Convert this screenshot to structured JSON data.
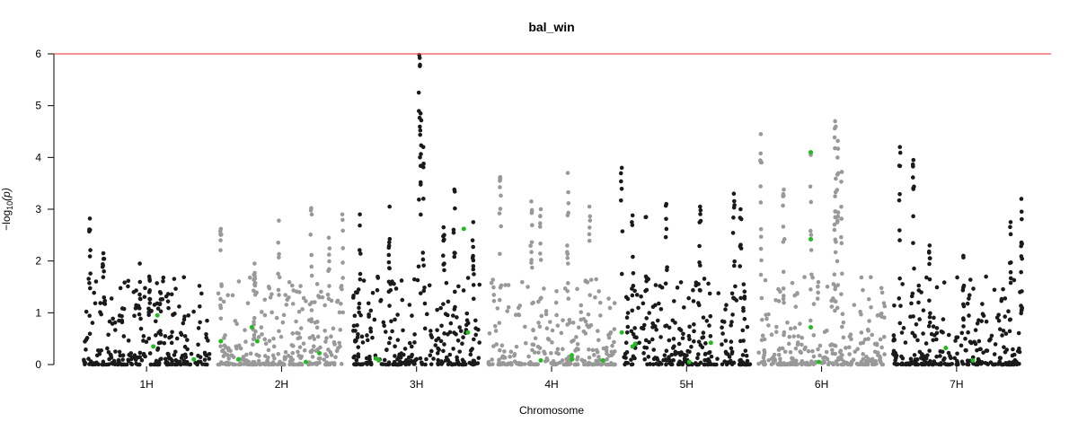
{
  "chart_data": {
    "type": "scatter",
    "title": "bal_win",
    "xlabel": "Chromosome",
    "ylabel_text": "−log",
    "ylabel_sub": "10",
    "ylabel_tail": "(p)",
    "ylim": [
      0,
      6
    ],
    "yticks": [
      0,
      1,
      2,
      3,
      4,
      5,
      6
    ],
    "threshold": 6,
    "colors": {
      "odd": "#1a1a1a",
      "even": "#999999",
      "highlight": "#22bb22",
      "threshold": "#ee5555",
      "axis": "#000000"
    },
    "chromosomes": [
      {
        "name": "1H",
        "range": [
          0,
          1.0
        ],
        "peaks": [
          {
            "x": 0.08,
            "y": 2.82
          },
          {
            "x": 0.18,
            "y": 2.15
          },
          {
            "x": 0.45,
            "y": 1.95
          },
          {
            "x": 0.52,
            "y": 1.7
          },
          {
            "x": 0.6,
            "y": 1.4
          }
        ]
      },
      {
        "name": "2H",
        "range": [
          1.0,
          2.0
        ],
        "peaks": [
          {
            "x": 1.05,
            "y": 2.62
          },
          {
            "x": 1.3,
            "y": 1.95
          },
          {
            "x": 1.48,
            "y": 2.78
          },
          {
            "x": 1.72,
            "y": 3.02
          },
          {
            "x": 1.85,
            "y": 2.45
          },
          {
            "x": 1.95,
            "y": 2.9
          }
        ]
      },
      {
        "name": "3H",
        "range": [
          2.0,
          3.0
        ],
        "peaks": [
          {
            "x": 2.08,
            "y": 2.9
          },
          {
            "x": 2.3,
            "y": 3.05
          },
          {
            "x": 2.52,
            "y": 5.98
          },
          {
            "x": 2.53,
            "y": 4.85
          },
          {
            "x": 2.55,
            "y": 4.2
          },
          {
            "x": 2.7,
            "y": 2.65
          },
          {
            "x": 2.78,
            "y": 3.38
          },
          {
            "x": 2.92,
            "y": 2.75
          }
        ]
      },
      {
        "name": "4H",
        "range": [
          3.0,
          4.0
        ],
        "peaks": [
          {
            "x": 3.12,
            "y": 3.62
          },
          {
            "x": 3.35,
            "y": 3.15
          },
          {
            "x": 3.42,
            "y": 3.0
          },
          {
            "x": 3.62,
            "y": 3.7
          },
          {
            "x": 3.78,
            "y": 3.05
          }
        ]
      },
      {
        "name": "5H",
        "range": [
          4.0,
          5.0
        ],
        "peaks": [
          {
            "x": 4.02,
            "y": 3.8
          },
          {
            "x": 4.1,
            "y": 2.88
          },
          {
            "x": 4.2,
            "y": 2.85
          },
          {
            "x": 4.35,
            "y": 3.1
          },
          {
            "x": 4.6,
            "y": 3.05
          },
          {
            "x": 4.85,
            "y": 3.3
          },
          {
            "x": 4.9,
            "y": 3.0
          }
        ]
      },
      {
        "name": "6H",
        "range": [
          5.0,
          6.0
        ],
        "peaks": [
          {
            "x": 5.05,
            "y": 4.45
          },
          {
            "x": 5.22,
            "y": 3.38
          },
          {
            "x": 5.42,
            "y": 4.05
          },
          {
            "x": 5.6,
            "y": 4.7
          },
          {
            "x": 5.62,
            "y": 4.32
          },
          {
            "x": 5.65,
            "y": 3.72
          },
          {
            "x": 5.6,
            "y": 3.25
          }
        ]
      },
      {
        "name": "7H",
        "range": [
          6.0,
          7.0
        ],
        "peaks": [
          {
            "x": 6.08,
            "y": 4.2
          },
          {
            "x": 6.18,
            "y": 3.95
          },
          {
            "x": 6.3,
            "y": 2.3
          },
          {
            "x": 6.55,
            "y": 2.1
          },
          {
            "x": 6.9,
            "y": 2.75
          },
          {
            "x": 6.98,
            "y": 3.2
          },
          {
            "x": 6.98,
            "y": 2.35
          }
        ]
      }
    ],
    "highlighted_points": [
      {
        "x": 0.58,
        "y": 0.95
      },
      {
        "x": 0.55,
        "y": 0.35
      },
      {
        "x": 0.85,
        "y": 0.1
      },
      {
        "x": 1.05,
        "y": 0.45
      },
      {
        "x": 1.18,
        "y": 0.1
      },
      {
        "x": 1.28,
        "y": 0.72
      },
      {
        "x": 1.32,
        "y": 0.45
      },
      {
        "x": 1.68,
        "y": 0.05
      },
      {
        "x": 1.78,
        "y": 0.22
      },
      {
        "x": 2.2,
        "y": 0.12
      },
      {
        "x": 2.22,
        "y": 0.08
      },
      {
        "x": 2.85,
        "y": 2.62
      },
      {
        "x": 2.88,
        "y": 0.62
      },
      {
        "x": 3.42,
        "y": 0.08
      },
      {
        "x": 3.65,
        "y": 0.18
      },
      {
        "x": 3.65,
        "y": 0.1
      },
      {
        "x": 3.88,
        "y": 0.08
      },
      {
        "x": 4.02,
        "y": 0.62
      },
      {
        "x": 4.1,
        "y": 0.35
      },
      {
        "x": 4.12,
        "y": 0.4
      },
      {
        "x": 4.52,
        "y": 0.05
      },
      {
        "x": 4.68,
        "y": 0.42
      },
      {
        "x": 5.42,
        "y": 4.1
      },
      {
        "x": 5.42,
        "y": 2.42
      },
      {
        "x": 5.42,
        "y": 0.72
      },
      {
        "x": 5.48,
        "y": 0.05
      },
      {
        "x": 6.42,
        "y": 0.32
      },
      {
        "x": 6.62,
        "y": 0.08
      }
    ]
  }
}
